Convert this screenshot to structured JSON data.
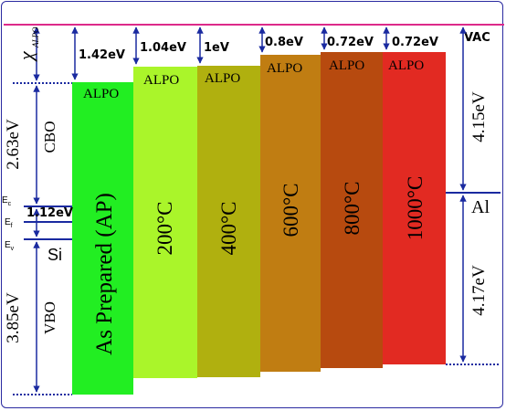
{
  "labels": {
    "vac": "VAC",
    "chi_symbol": "χ",
    "chi_subscript": "ALPO",
    "cbo_value": "2.63eV",
    "cbo_label": "CBO",
    "vbo_value": "3.85eV",
    "vbo_label": "VBO",
    "gap_value": "1.12eV",
    "ec": "E",
    "ec_sub": "c",
    "ef": "E",
    "ef_sub": "f",
    "ev": "E",
    "ev_sub": "v",
    "si": "Si",
    "al": "Al",
    "al_upper": "4.15eV",
    "al_lower": "4.17eV"
  },
  "samples": [
    {
      "offset": "1.42eV",
      "label": "ALPO",
      "name": "As Prepared (AP)",
      "color": "#22ee22"
    },
    {
      "offset": "1.04eV",
      "label": "ALPO",
      "name": "200°C",
      "color": "#aaf52a"
    },
    {
      "offset": "1eV",
      "label": "ALPO",
      "name": "400°C",
      "color": "#b0b00f"
    },
    {
      "offset": "0.8eV",
      "label": "ALPO",
      "name": "600°C",
      "color": "#c07d12"
    },
    {
      "offset": "0.72eV",
      "label": "ALPO",
      "name": "800°C",
      "color": "#b74a0f"
    },
    {
      "offset": "0.72eV",
      "label": "ALPO",
      "name": "1000°C",
      "color": "#e22a22"
    }
  ],
  "colors": {
    "vac_line": "#dd2a8a",
    "arrow": "#1a2aa0",
    "level_line": "#1a2aa0"
  }
}
